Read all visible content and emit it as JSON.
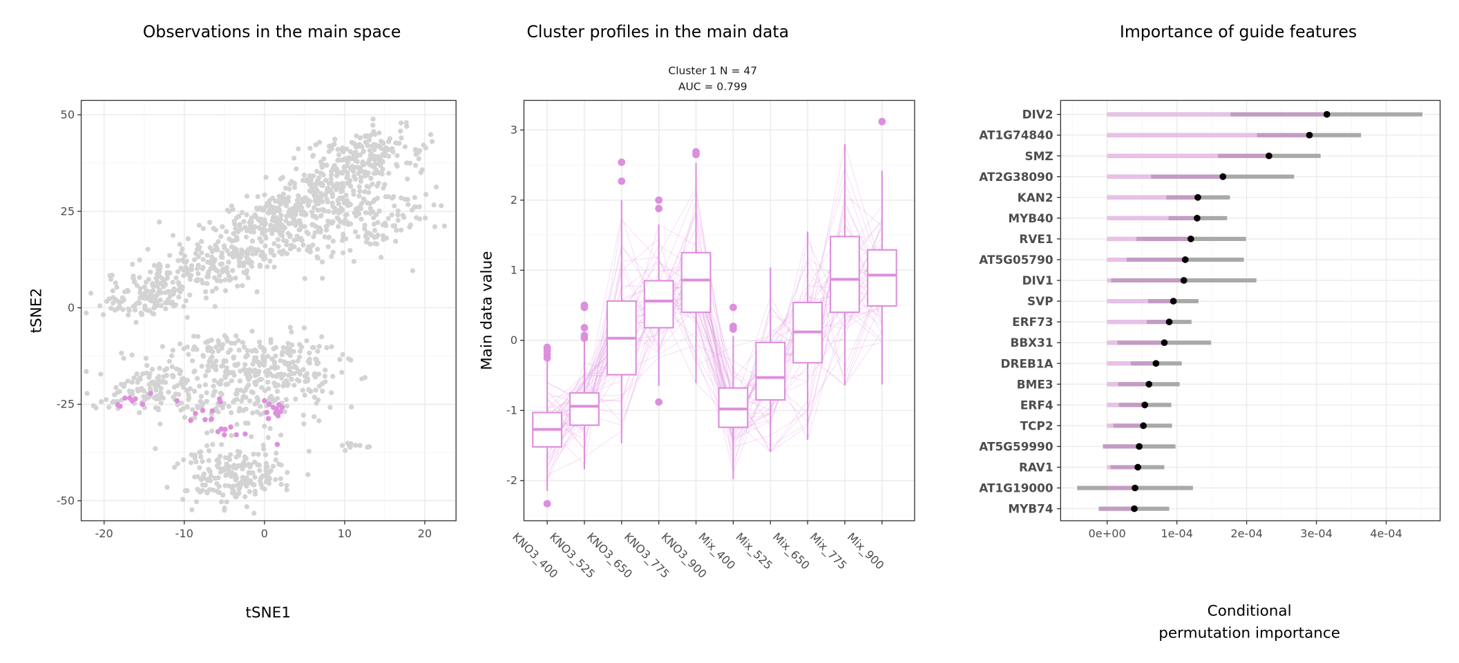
{
  "colors": {
    "highlight": "#dd8fdd",
    "background_points": "#d3d3d3",
    "pink_light": "#e8c0e8",
    "purple": "#c39bc3",
    "grey": "#a9a9a9",
    "point": "#000000"
  },
  "chart_data": [
    {
      "type": "scatter",
      "title": "Observations in the main space",
      "xlabel": "tSNE1",
      "ylabel": "tSNE2",
      "xlim": [
        -23,
        24
      ],
      "ylim": [
        -55,
        54
      ],
      "xticks": [
        -20,
        -10,
        0,
        10,
        20
      ],
      "xtick_labels": [
        "-20",
        "-10",
        "0",
        "10",
        "20"
      ],
      "yticks": [
        50,
        25,
        0,
        -25,
        -50
      ],
      "ytick_labels": [
        "50",
        "25",
        "0",
        "-25",
        "-50"
      ],
      "grid": true,
      "highlighted_points": [
        [
          -18.3,
          -25.1
        ],
        [
          -18.0,
          -25.5
        ],
        [
          -17.4,
          -23.4
        ],
        [
          -16.8,
          -23.4
        ],
        [
          -16.5,
          -24.1
        ],
        [
          -16.1,
          -23.6
        ],
        [
          -15.2,
          -25.0
        ],
        [
          -14.2,
          -22.2
        ],
        [
          -10.9,
          -24.1
        ],
        [
          -9.2,
          -29.2
        ],
        [
          -8.6,
          -27.4
        ],
        [
          -7.7,
          -26.6
        ],
        [
          -7.4,
          -29.0
        ],
        [
          -6.5,
          -26.7
        ],
        [
          -6.6,
          -28.8
        ],
        [
          -5.6,
          -23.6
        ],
        [
          -5.5,
          -24.4
        ],
        [
          -5.8,
          -32.1
        ],
        [
          -5.4,
          -31.4
        ],
        [
          -4.9,
          -31.5
        ],
        [
          -5.0,
          -32.9
        ],
        [
          -4.2,
          -30.9
        ],
        [
          -3.5,
          -32.9
        ],
        [
          -2.4,
          -32.7
        ],
        [
          0.0,
          -24.1
        ],
        [
          0.6,
          -25.0
        ],
        [
          0.3,
          -27.1
        ],
        [
          0.5,
          -28.7
        ],
        [
          1.1,
          -25.8
        ],
        [
          1.5,
          -26.2
        ],
        [
          1.8,
          -25.1
        ],
        [
          2.0,
          -26.9
        ],
        [
          1.7,
          -28.0
        ],
        [
          1.4,
          -27.3
        ],
        [
          2.2,
          -25.8
        ],
        [
          1.6,
          -35.4
        ]
      ]
    },
    {
      "type": "box",
      "title": "Cluster profiles in the main data",
      "subtitle_line1": "Cluster 1 N = 47",
      "subtitle_line2": "AUC = 0.799",
      "xlabel": "",
      "ylabel": "Main data value",
      "ylim": [
        -2.6,
        3.35
      ],
      "yticks": [
        3,
        2,
        1,
        0,
        -1,
        -2
      ],
      "ytick_labels": [
        "3",
        "2",
        "1",
        "0",
        "-1",
        "-2"
      ],
      "n_profiles": 47,
      "categories": [
        "KNO3_400",
        "KNO3_525",
        "KNO3_650",
        "KNO3_775",
        "KNO3_900",
        "Mix_400",
        "Mix_525",
        "Mix_650",
        "Mix_775",
        "Mix_900"
      ],
      "boxes": [
        {
          "q1": -1.52,
          "median": -1.27,
          "q3": -1.03,
          "whisker_low": -2.15,
          "whisker_high": -0.28,
          "outliers": [
            -0.1,
            -0.15,
            -0.2,
            -0.25,
            -2.33
          ]
        },
        {
          "q1": -1.21,
          "median": -0.94,
          "q3": -0.75,
          "whisker_low": -1.84,
          "whisker_high": -0.02,
          "outliers": [
            0.5,
            0.47,
            0.18,
            0.07,
            0.03
          ]
        },
        {
          "q1": -0.49,
          "median": 0.03,
          "q3": 0.56,
          "whisker_low": -1.47,
          "whisker_high": 2.0,
          "outliers": [
            2.54,
            2.27
          ]
        },
        {
          "q1": 0.18,
          "median": 0.56,
          "q3": 0.85,
          "whisker_low": -0.65,
          "whisker_high": 1.65,
          "outliers": [
            2.0,
            1.88,
            -0.88
          ]
        },
        {
          "q1": 0.4,
          "median": 0.86,
          "q3": 1.25,
          "whisker_low": -0.61,
          "whisker_high": 2.53,
          "outliers": [
            2.69,
            2.65
          ]
        },
        {
          "q1": -1.24,
          "median": -0.98,
          "q3": -0.68,
          "whisker_low": -1.98,
          "whisker_high": 0.06,
          "outliers": [
            0.47,
            0.2,
            0.16
          ]
        },
        {
          "q1": -0.85,
          "median": -0.53,
          "q3": -0.03,
          "whisker_low": -1.59,
          "whisker_high": 1.04,
          "outliers": []
        },
        {
          "q1": -0.32,
          "median": 0.12,
          "q3": 0.54,
          "whisker_low": -1.42,
          "whisker_high": 1.55,
          "outliers": []
        },
        {
          "q1": 0.4,
          "median": 0.87,
          "q3": 1.48,
          "whisker_low": -0.64,
          "whisker_high": 2.8,
          "outliers": []
        },
        {
          "q1": 0.49,
          "median": 0.93,
          "q3": 1.29,
          "whisker_low": -0.63,
          "whisker_high": 2.42,
          "outliers": [
            3.12
          ]
        }
      ]
    },
    {
      "type": "interval",
      "title": "Importance of guide features",
      "xlabel_line1": "Conditional",
      "xlabel_line2": "permutation importance",
      "value_scale": 0.0001,
      "xlim": [
        -0.67,
        4.77
      ],
      "xticks": [
        0,
        1,
        2,
        3,
        4
      ],
      "xtick_labels": [
        "0e+00",
        "1e-04",
        "2e-04",
        "3e-04",
        "4e-04"
      ],
      "features": [
        {
          "name": "DIV2",
          "low": 0,
          "inner_low": 1.77,
          "estimate": 3.15,
          "high": 4.52
        },
        {
          "name": "AT1G74840",
          "low": 0,
          "inner_low": 2.15,
          "estimate": 2.9,
          "high": 3.64
        },
        {
          "name": "SMZ",
          "low": 0,
          "inner_low": 1.59,
          "estimate": 2.32,
          "high": 3.06
        },
        {
          "name": "AT2G38090",
          "low": 0,
          "inner_low": 0.63,
          "estimate": 1.66,
          "high": 2.68
        },
        {
          "name": "KAN2",
          "low": 0,
          "inner_low": 0.85,
          "estimate": 1.3,
          "high": 1.76
        },
        {
          "name": "MYB40",
          "low": 0,
          "inner_low": 0.88,
          "estimate": 1.29,
          "high": 1.72
        },
        {
          "name": "RVE1",
          "low": 0,
          "inner_low": 0.42,
          "estimate": 1.2,
          "high": 1.99
        },
        {
          "name": "AT5G05790",
          "low": 0,
          "inner_low": 0.28,
          "estimate": 1.12,
          "high": 1.96
        },
        {
          "name": "DIV1",
          "low": 0,
          "inner_low": 0.06,
          "estimate": 1.1,
          "high": 2.14
        },
        {
          "name": "SVP",
          "low": 0,
          "inner_low": 0.59,
          "estimate": 0.95,
          "high": 1.31
        },
        {
          "name": "ERF73",
          "low": 0,
          "inner_low": 0.57,
          "estimate": 0.89,
          "high": 1.21
        },
        {
          "name": "BBX31",
          "low": 0,
          "inner_low": 0.15,
          "estimate": 0.82,
          "high": 1.49
        },
        {
          "name": "DREB1A",
          "low": 0,
          "inner_low": 0.34,
          "estimate": 0.7,
          "high": 1.07
        },
        {
          "name": "BME3",
          "low": 0,
          "inner_low": 0.16,
          "estimate": 0.6,
          "high": 1.04
        },
        {
          "name": "ERF4",
          "low": 0,
          "inner_low": 0.17,
          "estimate": 0.54,
          "high": 0.92
        },
        {
          "name": "TCP2",
          "low": 0,
          "inner_low": 0.09,
          "estimate": 0.52,
          "high": 0.93
        },
        {
          "name": "AT5G59990",
          "low": -0.06,
          "inner_low": -0.06,
          "estimate": 0.46,
          "high": 0.98
        },
        {
          "name": "RAV1",
          "low": 0,
          "inner_low": 0.05,
          "estimate": 0.44,
          "high": 0.82
        },
        {
          "name": "AT1G19000",
          "low": -0.43,
          "inner_low": 0,
          "estimate": 0.4,
          "high": 1.23
        },
        {
          "name": "MYB74",
          "low": -0.12,
          "inner_low": -0.12,
          "estimate": 0.39,
          "high": 0.89
        }
      ]
    }
  ]
}
